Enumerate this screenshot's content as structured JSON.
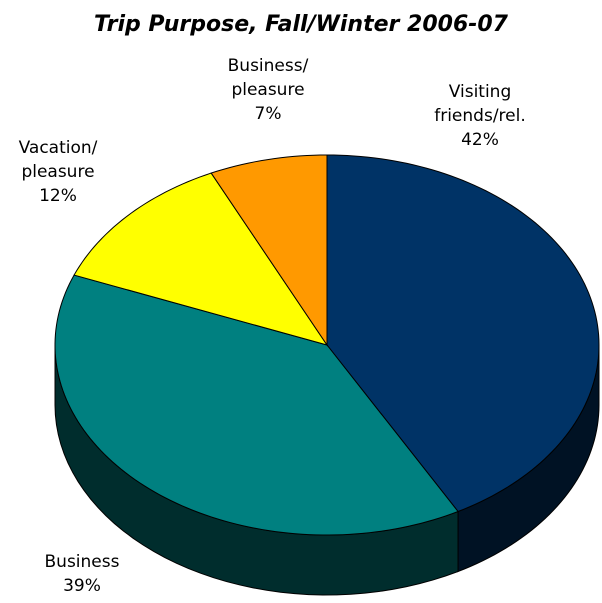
{
  "chart_data": {
    "type": "pie",
    "title": "Trip Purpose, Fall/Winter 2006-07",
    "categories": [
      "Visiting friends/rel.",
      "Business",
      "Vacation/ pleasure",
      "Business/ pleasure"
    ],
    "values": [
      42,
      39,
      12,
      7
    ],
    "value_labels": [
      "42%",
      "39%",
      "12%",
      "7%"
    ],
    "colors": [
      "#003366",
      "#008080",
      "#ffff00",
      "#ff9900"
    ]
  }
}
